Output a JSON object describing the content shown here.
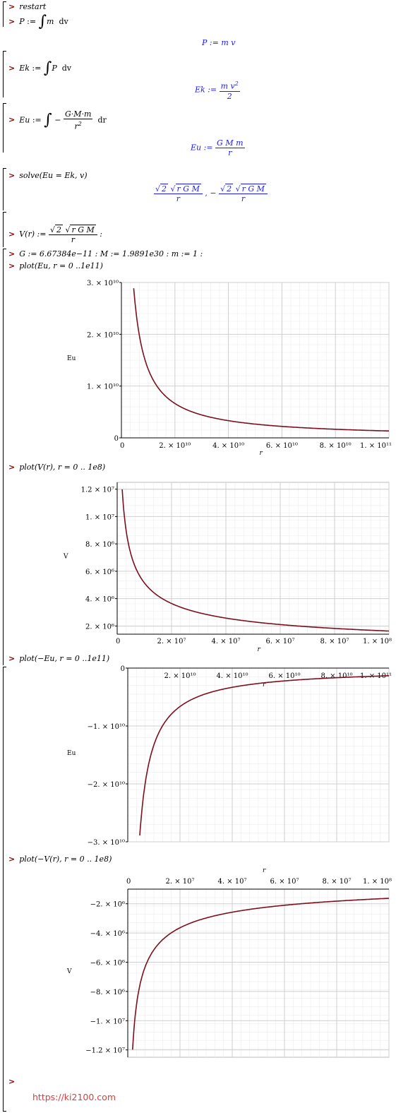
{
  "commands": {
    "restart": "restart",
    "p_def_lhs": "P",
    "p_def_integrand": "m",
    "p_def_dvar": "dv",
    "p_out": "P := m v",
    "ek_def_lhs": "Ek",
    "ek_def_integrand": "P",
    "ek_def_dvar": "dv",
    "ek_out_lhs": "Ek :=",
    "ek_out_num": "m v",
    "ek_out_sup": "2",
    "ek_out_den": "2",
    "eu_def_lhs": "Eu",
    "eu_def_num": "G·M·m",
    "eu_def_den": "r",
    "eu_def_sup": "2",
    "eu_def_dvar": "dr",
    "eu_out_lhs": "Eu :=",
    "eu_out_num": "G M m",
    "eu_out_den": "r",
    "solve_cmd": "solve(Eu = Ek, v)",
    "solve_out_rad": "2",
    "solve_out_rad2": "r G M",
    "solve_out_den": "r",
    "v_def_lhs": "V(r) :=",
    "v_def_rad": "2",
    "v_def_rad2": "r G M",
    "v_def_den": "r",
    "consts": "G := 6.67384e−11 : M := 1.9891e30 : m := 1 :",
    "plot1_cmd": "plot(Eu, r = 0 ..1e11)",
    "plot2_cmd": "plot(V(r), r = 0 .. 1e8)",
    "plot3_cmd": "plot(−Eu, r = 0 ..1e11)",
    "plot4_cmd": "plot(−V(r), r = 0 .. 1e8)",
    "prompt": ">"
  },
  "colors": {
    "curve": "#7b0f1e",
    "output": "#1a1aff",
    "grid": "#cfcfcf",
    "prompt": "#8b0000",
    "watermark": "#e23b3b"
  },
  "footer": {
    "url": "https://ki2100.com"
  },
  "chart_data": [
    {
      "type": "line",
      "title": "",
      "xlabel": "r",
      "ylabel": "Eu",
      "xlim": [
        0,
        100000000000.0
      ],
      "ylim": [
        0,
        30000000000.0
      ],
      "xticks": [
        "0",
        "2. × 10¹⁰",
        "4. × 10¹⁰",
        "6. × 10¹⁰",
        "8. × 10¹⁰",
        "1. × 10¹¹"
      ],
      "yticks": [
        "0",
        "1. × 10¹⁰",
        "2. × 10¹⁰",
        "3. × 10¹⁰"
      ],
      "function": "1.3275e20/r",
      "series": [
        {
          "x": [
            4400000000.0,
            6000000000.0,
            10000000000.0,
            20000000000.0,
            40000000000.0,
            60000000000.0,
            80000000000.0,
            100000000000.0
          ],
          "y": [
            30000000000.0,
            22100000000.0,
            13300000000.0,
            6640000000.0,
            3320000000.0,
            2210000000.0,
            1660000000.0,
            1330000000.0
          ]
        }
      ],
      "grid": true
    },
    {
      "type": "line",
      "title": "",
      "xlabel": "r",
      "ylabel": "V",
      "xlim": [
        0,
        100000000.0
      ],
      "ylim": [
        1400000.0,
        12500000.0
      ],
      "xticks": [
        "0",
        "2. × 10⁷",
        "4. × 10⁷",
        "6. × 10⁷",
        "8. × 10⁷",
        "1. × 10⁸"
      ],
      "yticks": [
        "2. × 10⁶",
        "4. × 10⁶",
        "6. × 10⁶",
        "8. × 10⁶",
        "1. × 10⁷",
        "1.2 × 10⁷"
      ],
      "function": "sqrt(2*1.3275e20/r)",
      "series": [
        {
          "x": [
            1700000.0,
            5000000.0,
            10000000.0,
            20000000.0,
            40000000.0,
            60000000.0,
            80000000.0,
            100000000.0
          ],
          "y": [
            12500000.0,
            7290000.0,
            5150000.0,
            3640000.0,
            2580000.0,
            2100000.0,
            1820000.0,
            1630000.0
          ]
        }
      ],
      "grid": true
    },
    {
      "type": "line",
      "title": "",
      "xlabel": "r",
      "ylabel": "Eu",
      "xlim": [
        0,
        100000000000.0
      ],
      "ylim": [
        -30000000000.0,
        0
      ],
      "xticks": [
        "2. × 10¹⁰",
        "4. × 10¹⁰",
        "6. × 10¹⁰",
        "8. × 10¹⁰",
        "1. × 10¹¹"
      ],
      "yticks": [
        "0",
        "−1. × 10¹⁰",
        "−2. × 10¹⁰",
        "−3. × 10¹⁰"
      ],
      "function": "-1.3275e20/r",
      "series": [
        {
          "x": [
            4400000000.0,
            6000000000.0,
            10000000000.0,
            20000000000.0,
            40000000000.0,
            60000000000.0,
            80000000000.0,
            100000000000.0
          ],
          "y": [
            -30000000000.0,
            -22100000000.0,
            -13300000000.0,
            -6640000000.0,
            -3320000000.0,
            -2210000000.0,
            -1660000000.0,
            -1330000000.0
          ]
        }
      ],
      "grid": true
    },
    {
      "type": "line",
      "title": "",
      "xlabel": "r",
      "ylabel": "V",
      "xlim": [
        0,
        100000000.0
      ],
      "ylim": [
        -12500000.0,
        -1000000.0
      ],
      "xticks": [
        "0",
        "2. × 10⁷",
        "4. × 10⁷",
        "6. × 10⁷",
        "8. × 10⁷",
        "1. × 10⁸"
      ],
      "yticks": [
        "−2. × 10⁶",
        "−4. × 10⁶",
        "−6. × 10⁶",
        "−8. × 10⁶",
        "−1. × 10⁷",
        "−1.2 × 10⁷"
      ],
      "function": "-sqrt(2*1.3275e20/r)",
      "series": [
        {
          "x": [
            1700000.0,
            5000000.0,
            10000000.0,
            20000000.0,
            40000000.0,
            60000000.0,
            80000000.0,
            100000000.0
          ],
          "y": [
            -12500000.0,
            -7290000.0,
            -5150000.0,
            -3640000.0,
            -2580000.0,
            -2100000.0,
            -1820000.0,
            -1630000.0
          ]
        }
      ],
      "grid": true
    }
  ]
}
